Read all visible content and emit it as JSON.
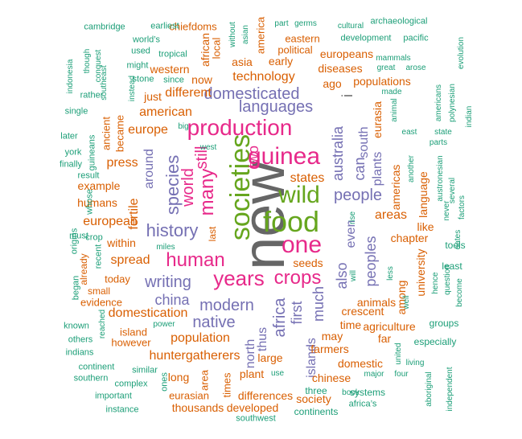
{
  "colors": {
    "green": "#1b9e77",
    "orange": "#d95f02",
    "purple": "#7570b3",
    "magenta": "#e7298a",
    "lime": "#66a61e",
    "gray": "#666666"
  },
  "words": [
    {
      "text": "new",
      "color": "gray"
    },
    {
      "text": "food",
      "color": "lime"
    },
    {
      "text": "societies",
      "color": "lime"
    },
    {
      "text": "guinea",
      "color": "magenta"
    },
    {
      "text": "wild",
      "color": "lime"
    },
    {
      "text": "one",
      "color": "magenta"
    },
    {
      "text": "production",
      "color": "magenta"
    },
    {
      "text": "years",
      "color": "magenta"
    },
    {
      "text": "crops",
      "color": "magenta"
    },
    {
      "text": "human",
      "color": "magenta"
    },
    {
      "text": "many",
      "color": "magenta"
    },
    {
      "text": "world",
      "color": "magenta"
    },
    {
      "text": "still",
      "color": "magenta"
    },
    {
      "text": "species",
      "color": "purple"
    },
    {
      "text": "history",
      "color": "purple"
    },
    {
      "text": "languages",
      "color": "purple"
    },
    {
      "text": "domesticated",
      "color": "purple"
    },
    {
      "text": "people",
      "color": "purple"
    },
    {
      "text": "africa",
      "color": "purple"
    },
    {
      "text": "modern",
      "color": "purple"
    },
    {
      "text": "writing",
      "color": "purple"
    },
    {
      "text": "native",
      "color": "purple"
    },
    {
      "text": "china",
      "color": "purple"
    },
    {
      "text": "first",
      "color": "purple"
    },
    {
      "text": "much",
      "color": "purple"
    },
    {
      "text": "also",
      "color": "purple"
    },
    {
      "text": "even",
      "color": "purple"
    },
    {
      "text": "peoples",
      "color": "purple"
    },
    {
      "text": "australia",
      "color": "purple"
    },
    {
      "text": "can",
      "color": "purple"
    },
    {
      "text": "plants",
      "color": "purple"
    },
    {
      "text": "around",
      "color": "purple"
    },
    {
      "text": "north",
      "color": "purple"
    },
    {
      "text": "thus",
      "color": "purple"
    },
    {
      "text": "islands",
      "color": "purple"
    },
    {
      "text": "south",
      "color": "purple"
    },
    {
      "text": "two",
      "color": "magenta"
    },
    {
      "text": "i",
      "color": "gray"
    },
    {
      "text": "population",
      "color": "orange"
    },
    {
      "text": "huntergatherers",
      "color": "orange"
    },
    {
      "text": "domestication",
      "color": "orange"
    },
    {
      "text": "american",
      "color": "orange"
    },
    {
      "text": "technology",
      "color": "orange"
    },
    {
      "text": "europe",
      "color": "orange"
    },
    {
      "text": "different",
      "color": "orange"
    },
    {
      "text": "european",
      "color": "orange"
    },
    {
      "text": "spread",
      "color": "orange"
    },
    {
      "text": "press",
      "color": "orange"
    },
    {
      "text": "fertile",
      "color": "orange"
    },
    {
      "text": "states",
      "color": "orange"
    },
    {
      "text": "areas",
      "color": "orange"
    },
    {
      "text": "animals",
      "color": "orange"
    },
    {
      "text": "crescent",
      "color": "orange"
    },
    {
      "text": "time",
      "color": "orange"
    },
    {
      "text": "farmers",
      "color": "orange"
    },
    {
      "text": "large",
      "color": "orange"
    },
    {
      "text": "plant",
      "color": "orange"
    },
    {
      "text": "chapter",
      "color": "orange"
    },
    {
      "text": "language",
      "color": "orange"
    },
    {
      "text": "among",
      "color": "orange"
    },
    {
      "text": "americas",
      "color": "orange"
    },
    {
      "text": "eurasia",
      "color": "orange"
    },
    {
      "text": "asia",
      "color": "orange"
    },
    {
      "text": "early",
      "color": "orange"
    },
    {
      "text": "now",
      "color": "orange"
    },
    {
      "text": "just",
      "color": "orange"
    },
    {
      "text": "example",
      "color": "orange"
    },
    {
      "text": "humans",
      "color": "orange"
    },
    {
      "text": "within",
      "color": "orange"
    },
    {
      "text": "agriculture",
      "color": "orange"
    },
    {
      "text": "may",
      "color": "orange"
    },
    {
      "text": "domestic",
      "color": "orange"
    },
    {
      "text": "chinese",
      "color": "orange"
    },
    {
      "text": "differences",
      "color": "orange"
    },
    {
      "text": "developed",
      "color": "orange"
    },
    {
      "text": "thousands",
      "color": "orange"
    },
    {
      "text": "long",
      "color": "orange"
    },
    {
      "text": "ago",
      "color": "orange"
    },
    {
      "text": "populations",
      "color": "orange"
    },
    {
      "text": "diseases",
      "color": "orange"
    },
    {
      "text": "europeans",
      "color": "orange"
    },
    {
      "text": "western",
      "color": "orange"
    },
    {
      "text": "university",
      "color": "orange"
    },
    {
      "text": "like",
      "color": "orange"
    },
    {
      "text": "far",
      "color": "orange"
    },
    {
      "text": "society",
      "color": "orange"
    },
    {
      "text": "seeds",
      "color": "orange"
    },
    {
      "text": "eastern",
      "color": "orange"
    },
    {
      "text": "political",
      "color": "orange"
    },
    {
      "text": "african",
      "color": "orange"
    },
    {
      "text": "local",
      "color": "orange"
    },
    {
      "text": "america",
      "color": "orange"
    },
    {
      "text": "chiefdoms",
      "color": "orange"
    },
    {
      "text": "ancient",
      "color": "orange"
    },
    {
      "text": "became",
      "color": "orange"
    },
    {
      "text": "island",
      "color": "orange"
    },
    {
      "text": "however",
      "color": "orange"
    },
    {
      "text": "today",
      "color": "orange"
    },
    {
      "text": "evidence",
      "color": "orange"
    },
    {
      "text": "eurasian",
      "color": "orange"
    },
    {
      "text": "area",
      "color": "orange"
    },
    {
      "text": "times",
      "color": "orange"
    },
    {
      "text": "last",
      "color": "orange"
    },
    {
      "text": "already",
      "color": "orange"
    },
    {
      "text": "small",
      "color": "orange"
    },
    {
      "text": "three",
      "color": "green"
    },
    {
      "text": "continents",
      "color": "green"
    },
    {
      "text": "systems",
      "color": "green"
    },
    {
      "text": "especially",
      "color": "green"
    },
    {
      "text": "tools",
      "color": "green"
    },
    {
      "text": "least",
      "color": "green"
    },
    {
      "text": "groups",
      "color": "green"
    },
    {
      "text": "cambridge",
      "color": "green"
    },
    {
      "text": "earliest",
      "color": "green"
    },
    {
      "text": "world’s",
      "color": "green"
    },
    {
      "text": "used",
      "color": "green"
    },
    {
      "text": "tropical",
      "color": "green"
    },
    {
      "text": "might",
      "color": "green"
    },
    {
      "text": "stone",
      "color": "green"
    },
    {
      "text": "since",
      "color": "green"
    },
    {
      "text": "rather",
      "color": "green"
    },
    {
      "text": "single",
      "color": "green"
    },
    {
      "text": "later",
      "color": "green"
    },
    {
      "text": "york",
      "color": "green"
    },
    {
      "text": "finally",
      "color": "green"
    },
    {
      "text": "result",
      "color": "green"
    },
    {
      "text": "whose",
      "color": "green"
    },
    {
      "text": "origins",
      "color": "green"
    },
    {
      "text": "must",
      "color": "green"
    },
    {
      "text": "crop",
      "color": "green"
    },
    {
      "text": "recent",
      "color": "green"
    },
    {
      "text": "began",
      "color": "green"
    },
    {
      "text": "known",
      "color": "green"
    },
    {
      "text": "others",
      "color": "green"
    },
    {
      "text": "indians",
      "color": "green"
    },
    {
      "text": "continent",
      "color": "green"
    },
    {
      "text": "southern",
      "color": "green"
    },
    {
      "text": "important",
      "color": "green"
    },
    {
      "text": "instance",
      "color": "green"
    },
    {
      "text": "complex",
      "color": "green"
    },
    {
      "text": "similar",
      "color": "green"
    },
    {
      "text": "ones",
      "color": "green"
    },
    {
      "text": "southwest",
      "color": "green"
    },
    {
      "text": "africa’s",
      "color": "green"
    },
    {
      "text": "book",
      "color": "green"
    },
    {
      "text": "power",
      "color": "green"
    },
    {
      "text": "miles",
      "color": "green"
    },
    {
      "text": "west",
      "color": "green"
    },
    {
      "text": "big",
      "color": "green"
    },
    {
      "text": "use",
      "color": "green"
    },
    {
      "text": "major",
      "color": "green"
    },
    {
      "text": "living",
      "color": "green"
    },
    {
      "text": "four",
      "color": "green"
    },
    {
      "text": "united",
      "color": "green"
    },
    {
      "text": "aboriginal",
      "color": "green"
    },
    {
      "text": "independent",
      "color": "green"
    },
    {
      "text": "reached",
      "color": "green"
    },
    {
      "text": "guineans",
      "color": "green"
    },
    {
      "text": "instead",
      "color": "green"
    },
    {
      "text": "indonesia",
      "color": "green"
    },
    {
      "text": "though",
      "color": "green"
    },
    {
      "text": "conquest",
      "color": "green"
    },
    {
      "text": "southeast",
      "color": "green"
    },
    {
      "text": "without",
      "color": "green"
    },
    {
      "text": "asian",
      "color": "green"
    },
    {
      "text": "part",
      "color": "green"
    },
    {
      "text": "germs",
      "color": "green"
    },
    {
      "text": "cultural",
      "color": "green"
    },
    {
      "text": "archaeological",
      "color": "green"
    },
    {
      "text": "development",
      "color": "green"
    },
    {
      "text": "pacific",
      "color": "green"
    },
    {
      "text": "mammals",
      "color": "green"
    },
    {
      "text": "great",
      "color": "green"
    },
    {
      "text": "arose",
      "color": "green"
    },
    {
      "text": "evolution",
      "color": "green"
    },
    {
      "text": "made",
      "color": "green"
    },
    {
      "text": "americans",
      "color": "green"
    },
    {
      "text": "polynesian",
      "color": "green"
    },
    {
      "text": "indian",
      "color": "green"
    },
    {
      "text": "state",
      "color": "green"
    },
    {
      "text": "parts",
      "color": "green"
    },
    {
      "text": "east",
      "color": "green"
    },
    {
      "text": "animal",
      "color": "green"
    },
    {
      "text": "another",
      "color": "green"
    },
    {
      "text": "austronesian",
      "color": "green"
    },
    {
      "text": "several",
      "color": "green"
    },
    {
      "text": "never",
      "color": "green"
    },
    {
      "text": "factors",
      "color": "green"
    },
    {
      "text": "dates",
      "color": "green"
    },
    {
      "text": "rise",
      "color": "green"
    },
    {
      "text": "will",
      "color": "green"
    },
    {
      "text": "less",
      "color": "green"
    },
    {
      "text": "well",
      "color": "green"
    },
    {
      "text": "hence",
      "color": "green"
    },
    {
      "text": "question",
      "color": "green"
    },
    {
      "text": "become",
      "color": "green"
    }
  ]
}
